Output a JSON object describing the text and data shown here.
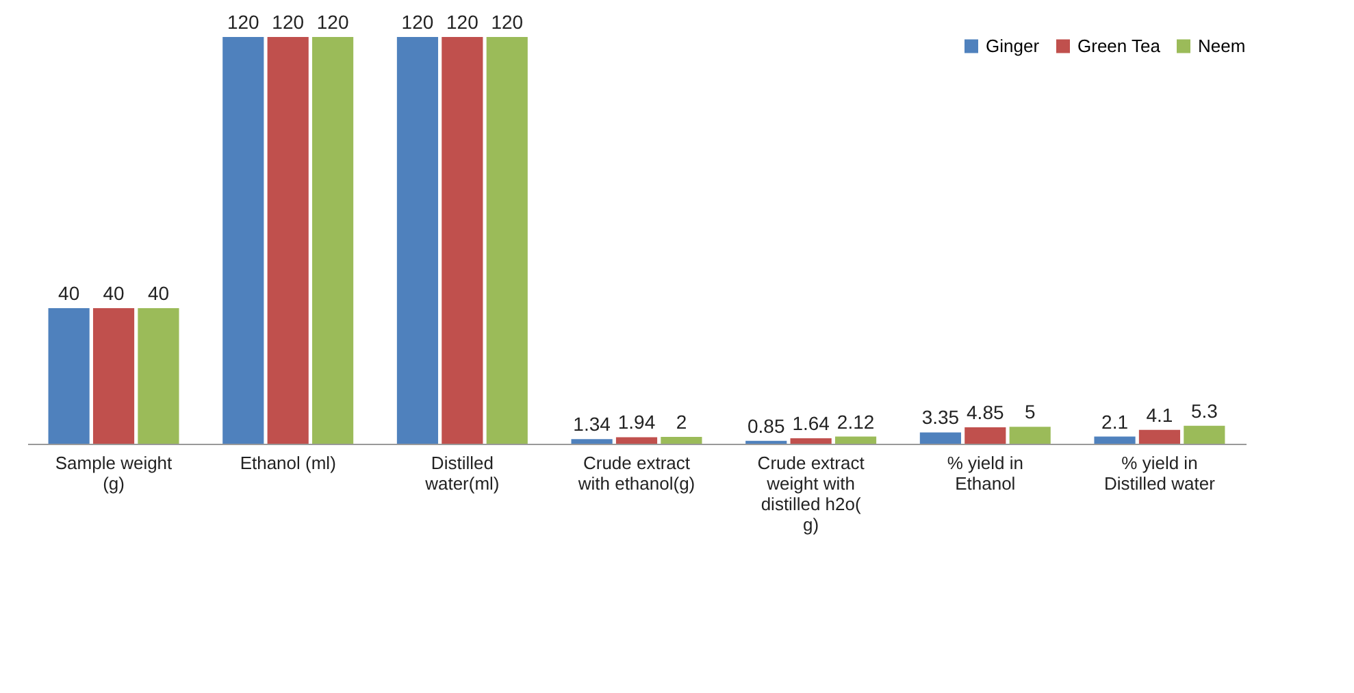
{
  "chart_data": {
    "type": "bar",
    "data_labels": true,
    "legend": "top right",
    "grid": false,
    "categories": [
      "Sample weight (g)",
      "Ethanol (ml)",
      "Distilled water(ml)",
      "Crude extract with ethanol(g)",
      "Crude extract weight with distilled h2o( g)",
      "% yield in Ethanol",
      "% yield in Distilled water"
    ],
    "series": [
      {
        "name": "Ginger",
        "color": "#4f81bd",
        "values": [
          40,
          120,
          120,
          1.34,
          0.85,
          3.35,
          2.1
        ]
      },
      {
        "name": "Green Tea",
        "color": "#c0504d",
        "values": [
          40,
          120,
          120,
          1.94,
          1.64,
          4.85,
          4.1
        ]
      },
      {
        "name": "Neem",
        "color": "#9bbb59",
        "values": [
          40,
          120,
          120,
          2,
          2.12,
          5,
          5.3
        ]
      }
    ]
  }
}
